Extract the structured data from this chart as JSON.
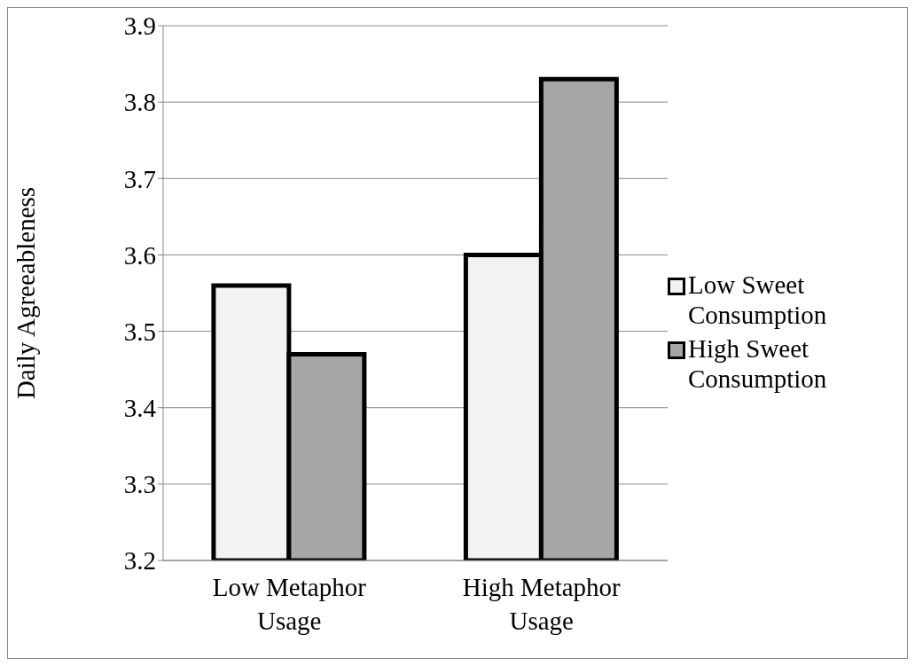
{
  "chart_data": {
    "type": "bar",
    "ylabel": "Daily Agreeableness",
    "categories": [
      "Low Metaphor Usage",
      "High Metaphor Usage"
    ],
    "series": [
      {
        "name": "Low Sweet Consumption",
        "color": "#f2f2f2",
        "values": [
          3.56,
          3.6
        ]
      },
      {
        "name": "High Sweet Consumption",
        "color": "#a6a6a6",
        "values": [
          3.47,
          3.83
        ]
      }
    ],
    "ylim": [
      3.2,
      3.9
    ],
    "yticks": [
      3.2,
      3.3,
      3.4,
      3.5,
      3.6,
      3.7,
      3.8,
      3.9
    ],
    "grid": "y",
    "legend": "right"
  }
}
